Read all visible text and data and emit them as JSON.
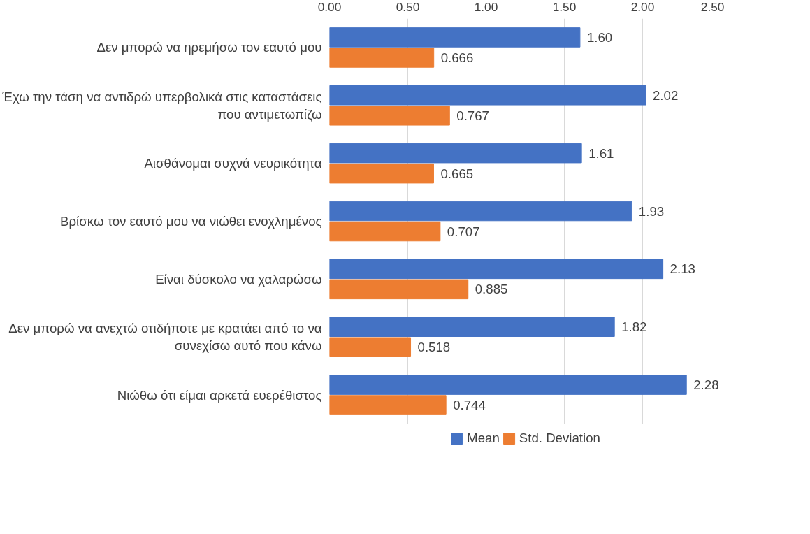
{
  "chart_data": {
    "type": "bar",
    "orientation": "horizontal",
    "categories": [
      "Δεν μπορώ να ηρεμήσω τον εαυτό μου",
      "Έχω την τάση να αντιδρώ υπερβολικά στις καταστάσεις που αντιμετωπίζω",
      "Αισθάνομαι συχνά νευρικότητα",
      "Βρίσκω τον εαυτό μου να νιώθει ενοχλημένος",
      "Είναι δύσκολο να χαλαρώσω",
      "Δεν μπορώ να ανεχτώ οτιδήποτε με κρατάει από το να συνεχίσω αυτό που κάνω",
      "Νιώθω ότι είμαι αρκετά ευερέθιστος"
    ],
    "series": [
      {
        "name": "Mean",
        "color": "#4472c4",
        "values": [
          1.6,
          2.02,
          1.61,
          1.93,
          2.13,
          1.82,
          2.28
        ],
        "value_labels": [
          "1.60",
          "2.02",
          "1.61",
          "1.93",
          "2.13",
          "1.82",
          "2.28"
        ]
      },
      {
        "name": "Std. Deviation",
        "color": "#ed7d31",
        "values": [
          0.666,
          0.767,
          0.665,
          0.707,
          0.885,
          0.518,
          0.744
        ],
        "value_labels": [
          "0.666",
          "0.767",
          "0.665",
          "0.707",
          "0.885",
          "0.518",
          "0.744"
        ]
      }
    ],
    "xlim": [
      0,
      2.5
    ],
    "xticks": [
      {
        "value": 0,
        "label": "0.00"
      },
      {
        "value": 0.5,
        "label": "0.50"
      },
      {
        "value": 1,
        "label": "1.00"
      },
      {
        "value": 1.5,
        "label": "1.50"
      },
      {
        "value": 2,
        "label": "2.00"
      },
      {
        "value": 2.5,
        "label": "2.50"
      }
    ],
    "grid": "x",
    "legend": "bottom"
  }
}
